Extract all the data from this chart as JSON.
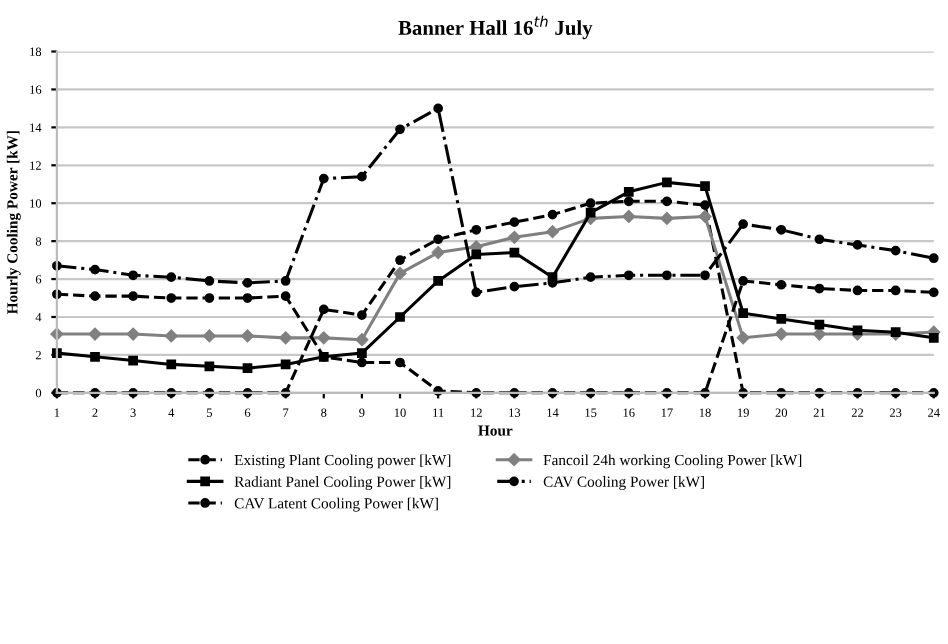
{
  "chart_data": {
    "type": "line",
    "title": "Banner Hall 16$^{th}$ July",
    "xlabel": "Hour",
    "ylabel": "Hourly Cooling Power [kW]",
    "x": [
      1,
      2,
      3,
      4,
      5,
      6,
      7,
      8,
      9,
      10,
      11,
      12,
      13,
      14,
      15,
      16,
      17,
      18,
      19,
      20,
      21,
      22,
      23,
      24
    ],
    "xlim": [
      1,
      24
    ],
    "xticks": [
      1,
      2,
      3,
      4,
      5,
      6,
      7,
      8,
      9,
      10,
      11,
      12,
      13,
      14,
      15,
      16,
      17,
      18,
      19,
      20,
      21,
      22,
      23,
      24
    ],
    "ylim": [
      0,
      18
    ],
    "yticks": [
      0,
      2,
      4,
      6,
      8,
      10,
      12,
      14,
      16,
      18
    ],
    "grid": "y",
    "legend": "bottom",
    "series": [
      {
        "name": "Existing Plant Cooling power [kW]",
        "color": "#000000",
        "line_style": "dashed",
        "marker": "circle",
        "values": [
          0,
          0,
          0,
          0,
          0,
          0,
          0,
          4.4,
          4.1,
          7.0,
          8.1,
          8.6,
          9.0,
          9.4,
          10.0,
          10.1,
          10.1,
          9.9,
          0,
          0,
          0,
          0,
          0,
          0
        ]
      },
      {
        "name": "Fancoil 24h working Cooling Power [kW]",
        "color": "#808080",
        "line_style": "solid",
        "marker": "diamond",
        "values": [
          3.1,
          3.1,
          3.1,
          3.0,
          3.0,
          3.0,
          2.9,
          2.9,
          2.8,
          6.3,
          7.4,
          7.7,
          8.2,
          8.5,
          9.2,
          9.3,
          9.2,
          9.3,
          2.9,
          3.1,
          3.1,
          3.1,
          3.1,
          3.2
        ]
      },
      {
        "name": "Radiant Panel Cooling Power [kW]",
        "color": "#000000",
        "line_style": "solid",
        "marker": "square",
        "values": [
          2.1,
          1.9,
          1.7,
          1.5,
          1.4,
          1.3,
          1.5,
          1.9,
          2.1,
          4.0,
          5.9,
          7.3,
          7.4,
          6.1,
          9.5,
          10.6,
          11.1,
          10.9,
          4.2,
          3.9,
          3.6,
          3.3,
          3.2,
          2.9
        ]
      },
      {
        "name": "CAV Cooling Power [kW]",
        "color": "#000000",
        "line_style": "dashdot",
        "marker": "circle",
        "values": [
          6.7,
          6.5,
          6.2,
          6.1,
          5.9,
          5.8,
          5.9,
          11.3,
          11.4,
          13.9,
          15.0,
          5.3,
          5.6,
          5.8,
          6.1,
          6.2,
          6.2,
          6.2,
          8.9,
          8.6,
          8.1,
          7.8,
          7.5,
          7.1
        ]
      },
      {
        "name": "CAV Latent Cooling Power [kW]",
        "color": "#000000",
        "line_style": "dashed",
        "marker": "circle",
        "values": [
          5.2,
          5.1,
          5.1,
          5.0,
          5.0,
          5.0,
          5.1,
          1.9,
          1.6,
          1.6,
          0.1,
          0,
          0,
          0,
          0,
          0,
          0,
          0,
          5.9,
          5.7,
          5.5,
          5.4,
          5.4,
          5.3
        ]
      }
    ]
  }
}
